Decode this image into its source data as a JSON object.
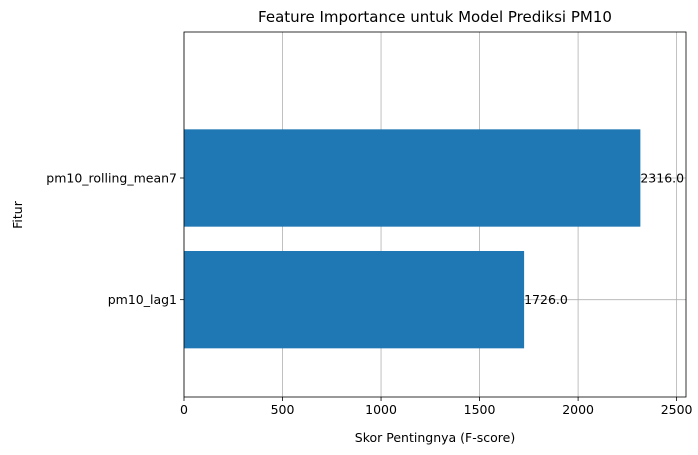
{
  "chart_data": {
    "type": "bar",
    "orientation": "horizontal",
    "title": "Feature Importance untuk Model Prediksi PM10",
    "xlabel": "Skor Pentingnya (F-score)",
    "ylabel": "Fitur",
    "categories": [
      "pm10_lag1",
      "pm10_rolling_mean7"
    ],
    "values": [
      1726.0,
      2316.0
    ],
    "value_labels": [
      "1726.0",
      "2316.0"
    ],
    "xlim": [
      0,
      2547.6
    ],
    "xticks": [
      0,
      500,
      1000,
      1500,
      2000,
      2500
    ],
    "xtick_labels": [
      "0",
      "500",
      "1000",
      "1500",
      "2000",
      "2500"
    ],
    "grid": true,
    "bar_color": "#1f77b4"
  }
}
